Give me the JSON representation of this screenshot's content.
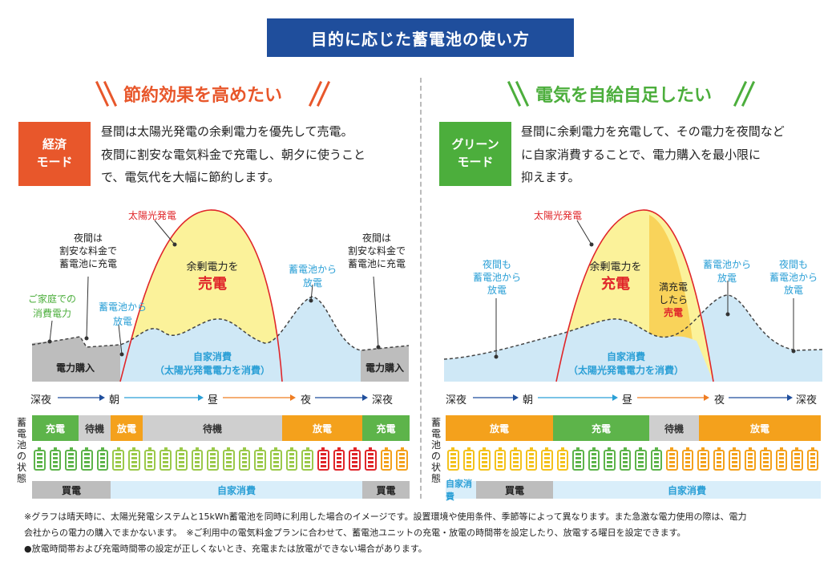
{
  "title": "目的に応じた蓄電池の使い方",
  "colors": {
    "navy": "#1f4e9c",
    "orange": "#e8572b",
    "green": "#4cae3c",
    "blue": "#2a9fd6",
    "red": "#e0262a",
    "yellow": "#fbf29a",
    "lightblue": "#cfe8f6",
    "gray": "#bdbdbd",
    "charge": "#5db44a",
    "discharge": "#f4a11c",
    "standby": "#cfcfcf"
  },
  "left": {
    "heading": "節約効果を高めたい",
    "badge": "経済\nモード",
    "desc1": "昼間は太陽光発電の余剰電力を優先して売電。",
    "desc2": "夜間に割安な電気料金で充電し、朝夕に使うこと",
    "desc3": "で、電気代を大幅に節約します。",
    "lbl_solar": "太陽光発電",
    "lbl_night_l": [
      "夜間は",
      "割安な料金で",
      "蓄電池に充電"
    ],
    "lbl_night_r": [
      "夜間は",
      "割安な料金で",
      "蓄電池に充電"
    ],
    "lbl_home": [
      "ご家庭での",
      "消費電力"
    ],
    "lbl_from_batt_l": [
      "蓄電池から",
      "放電"
    ],
    "lbl_from_batt_r": [
      "蓄電池から",
      "放電"
    ],
    "lbl_surplus": "余剰電力を",
    "lbl_sell": "売電",
    "lbl_self": "自家消費",
    "lbl_self_sub": "（太陽光発電電力を消費）",
    "lbl_buy": "電力購入",
    "time": [
      "深夜",
      "朝",
      "昼",
      "夜",
      "深夜"
    ],
    "states": [
      {
        "label": "充電",
        "type": "charge"
      },
      {
        "label": "待機",
        "type": "standby"
      },
      {
        "label": "放電",
        "type": "discharge"
      },
      {
        "label": "待機",
        "type": "standby"
      },
      {
        "label": "放電",
        "type": "discharge"
      },
      {
        "label": "充電",
        "type": "charge"
      }
    ],
    "bottom": [
      "買電",
      "自家消費",
      "買電"
    ]
  },
  "right": {
    "heading": "電気を自給自足したい",
    "badge": "グリーン\nモード",
    "desc1": "昼間に余剰電力を充電して、その電力を夜間など",
    "desc2": "に自家消費することで、電力購入を最小限に",
    "desc3": "抑えます。",
    "lbl_solar": "太陽光発電",
    "lbl_night_l": [
      "夜間も",
      "蓄電池から",
      "放電"
    ],
    "lbl_night_r": [
      "夜間も",
      "蓄電池から",
      "放電"
    ],
    "lbl_from_batt": [
      "蓄電池から",
      "放電"
    ],
    "lbl_surplus": "余剰電力を",
    "lbl_charge": "充電",
    "lbl_full": [
      "満充電",
      "したら"
    ],
    "lbl_sell": "売電",
    "lbl_self": "自家消費",
    "lbl_self_sub": "（太陽光発電電力を消費）",
    "time": [
      "深夜",
      "朝",
      "昼",
      "夜",
      "深夜"
    ],
    "states": [
      {
        "label": "放電",
        "type": "discharge"
      },
      {
        "label": "充電",
        "type": "charge"
      },
      {
        "label": "待機",
        "type": "standby"
      },
      {
        "label": "放電",
        "type": "discharge"
      }
    ],
    "bottom": [
      "自家消費",
      "買電",
      "自家消費"
    ]
  },
  "battery_state_label": "蓄電池の状態",
  "notes": [
    "※グラフは晴天時に、太陽光発電システムと15kWh蓄電池を同時に利用した場合のイメージです。設置環境や使用条件、季節等によって異なります。また急激な電力使用の際は、電力",
    "会社からの電力の購入でまかないます。　※ご利用中の電気料金プランに合わせて、蓄電池ユニットの充電・放電の時間帯を設定したり、放電する曜日を設定できます。",
    "●放電時間帯および充電時間帯の設定が正しくないとき、充電または放電ができない場合があります。"
  ]
}
